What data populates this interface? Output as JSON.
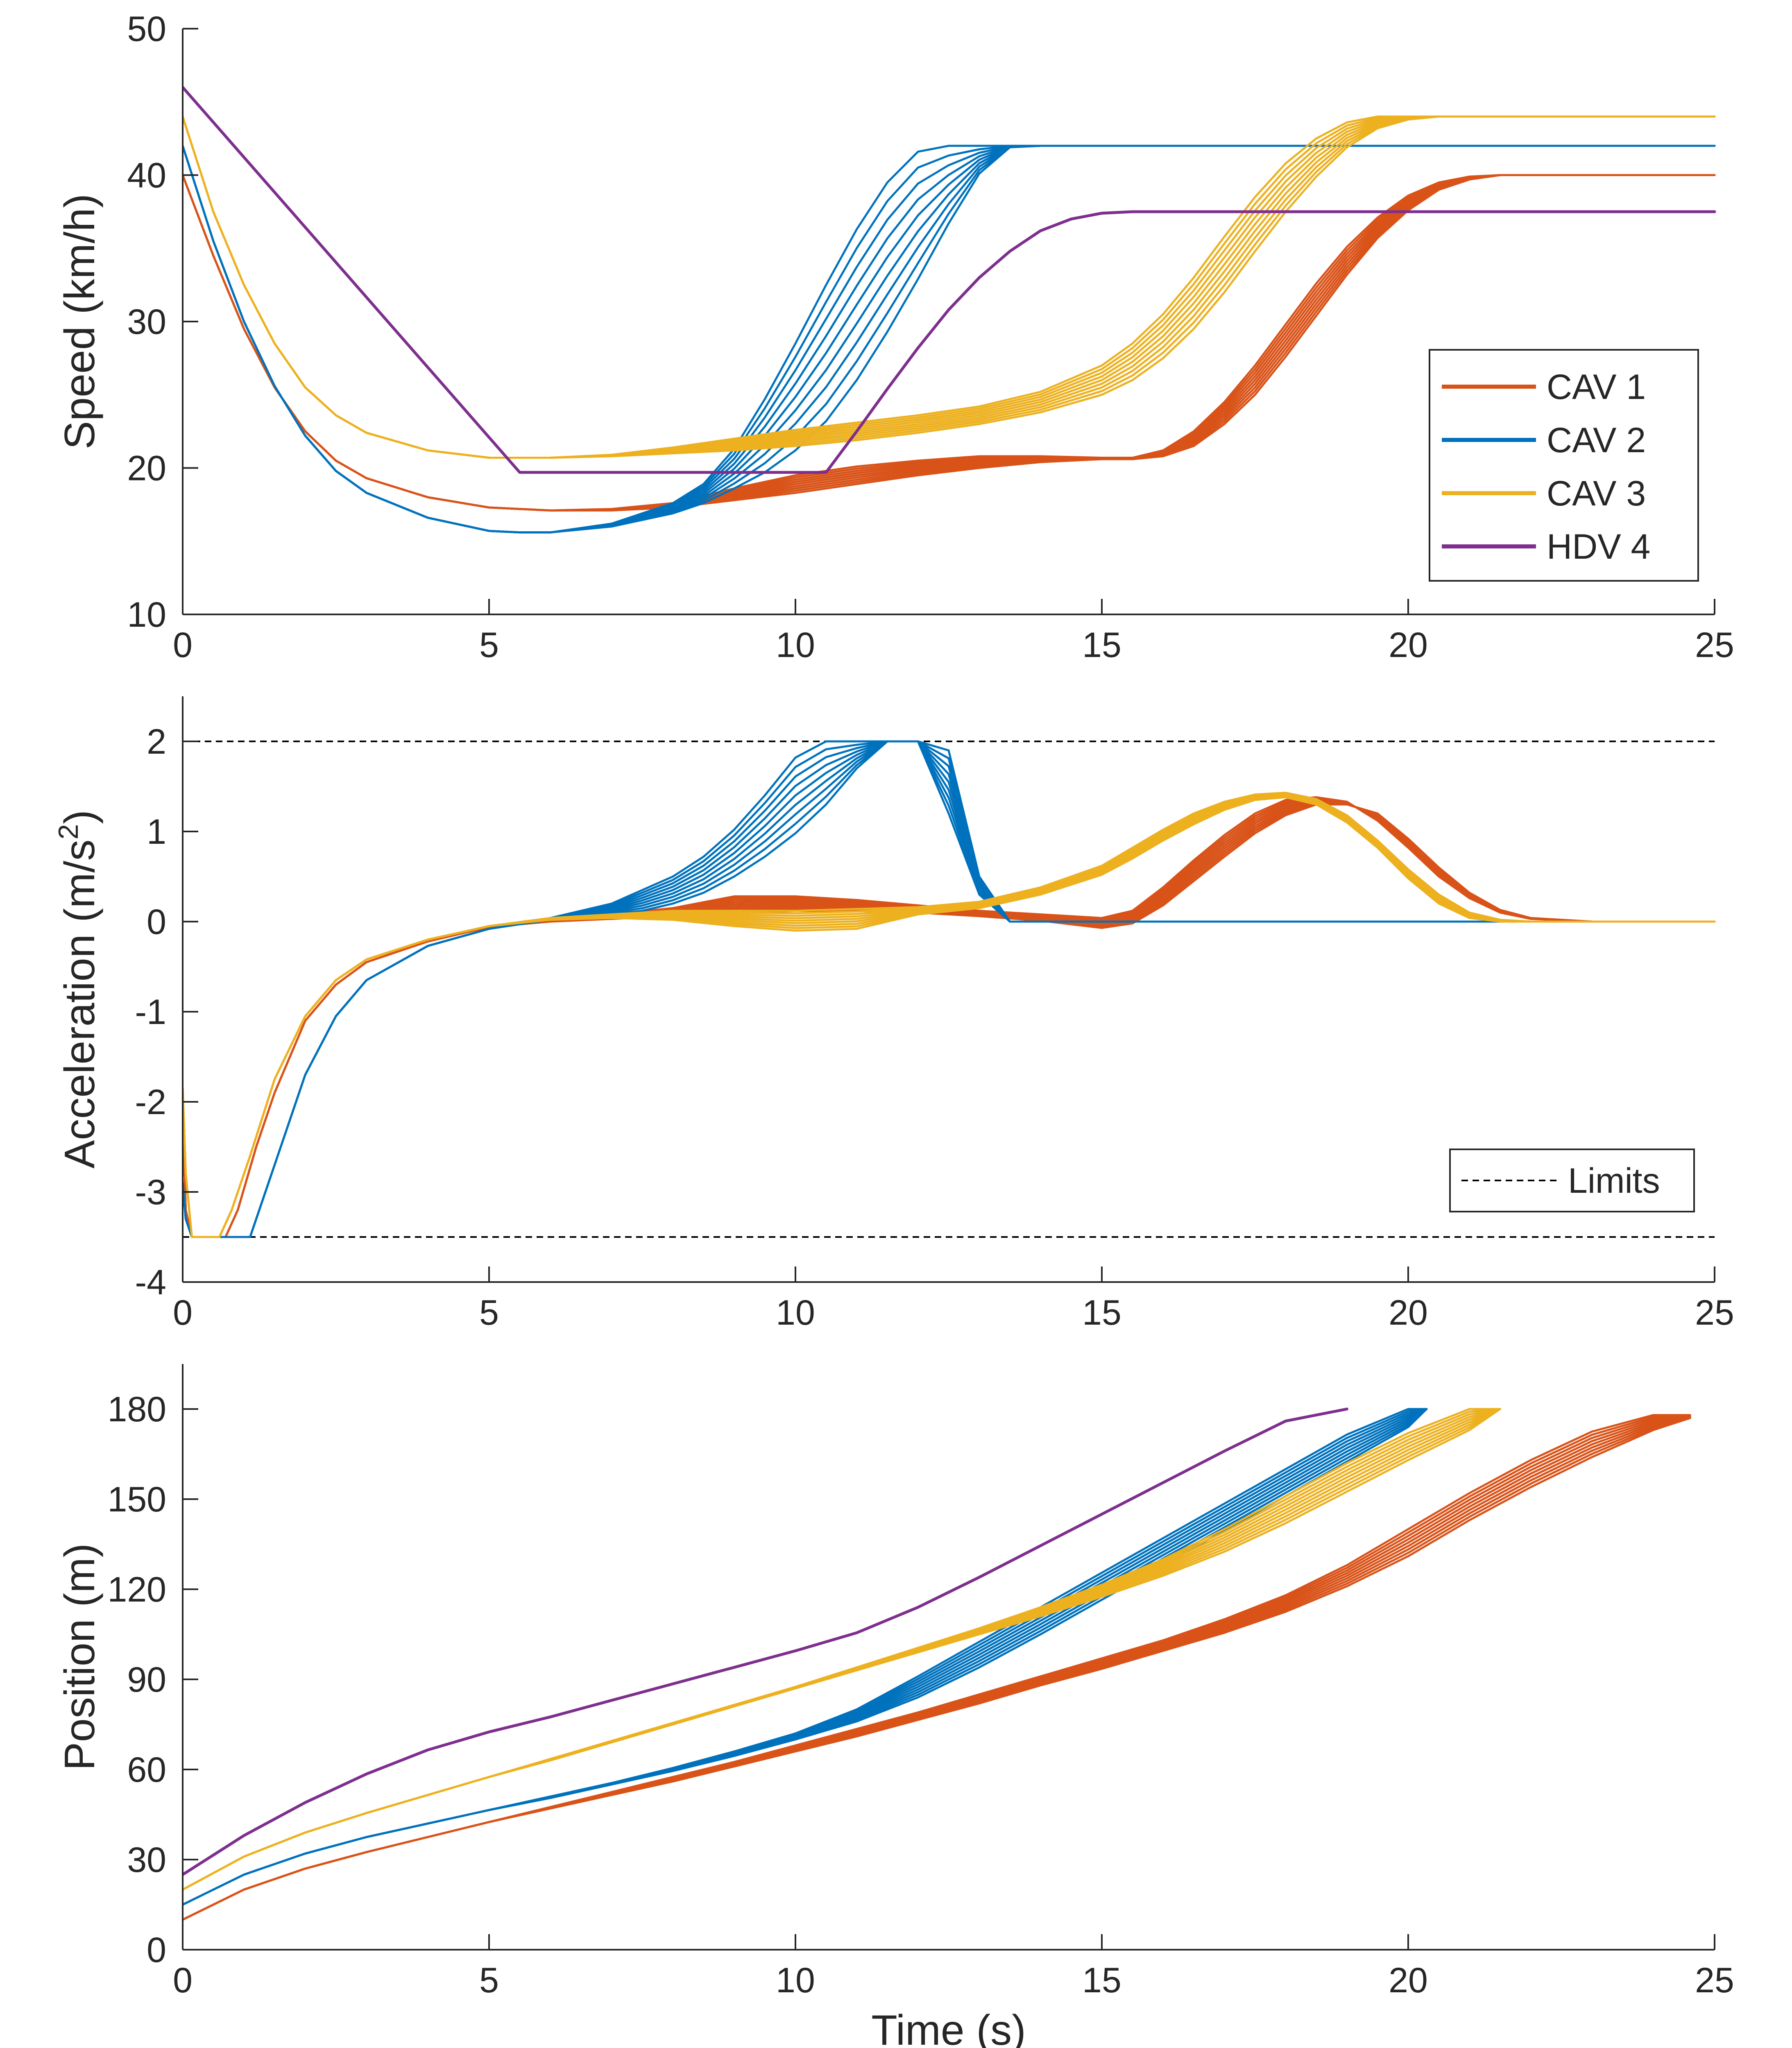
{
  "colors": {
    "CAV 1": "#D95319",
    "CAV 2": "#0072BD",
    "CAV 3": "#EDB120",
    "HDV 4": "#7E2F8E",
    "Limits": "#000000"
  },
  "chart_data": [
    {
      "id": "speed",
      "type": "line",
      "title": "",
      "xlabel": "",
      "ylabel": "Speed (km/h)",
      "xlim": [
        0,
        25
      ],
      "ylim": [
        10,
        50
      ],
      "xticks": [
        0,
        5,
        10,
        15,
        20,
        25
      ],
      "yticks": [
        10,
        20,
        30,
        40,
        50
      ],
      "xtick_labels": [
        "0",
        "5",
        "10",
        "15",
        "20",
        "25"
      ],
      "ytick_labels": [
        "10",
        "20",
        "30",
        "40",
        "50"
      ],
      "legend": {
        "position": "right",
        "entries": [
          "CAV 1",
          "CAV 2",
          "CAV 3",
          "HDV 4"
        ]
      },
      "series": [
        {
          "name": "CAV 1",
          "x": [
            0,
            0.5,
            1,
            1.5,
            2,
            2.5,
            3,
            4,
            5,
            6,
            7,
            8,
            9,
            10,
            11,
            12,
            13,
            14,
            15,
            15.5,
            16,
            16.5,
            17,
            17.5,
            18,
            18.5,
            19,
            19.5,
            20,
            20.5,
            21,
            21.5,
            22,
            23,
            24,
            25
          ],
          "y_upper": [
            40,
            34.5,
            29.5,
            25.5,
            22.5,
            20.5,
            19.3,
            18,
            17.3,
            17.1,
            17.2,
            17.6,
            18.6,
            19.5,
            20.1,
            20.5,
            20.8,
            20.8,
            20.7,
            20.7,
            21.2,
            22.5,
            24.5,
            27,
            29.8,
            32.6,
            35.1,
            37.1,
            38.6,
            39.5,
            39.9,
            40,
            40,
            40,
            40,
            40
          ],
          "y_lower": [
            40,
            34.5,
            29.5,
            25.5,
            22.5,
            20.5,
            19.3,
            18,
            17.3,
            17.1,
            17.1,
            17.3,
            17.8,
            18.3,
            18.9,
            19.5,
            20,
            20.4,
            20.6,
            20.6,
            20.8,
            21.5,
            23,
            25,
            27.6,
            30.4,
            33.2,
            35.7,
            37.6,
            39,
            39.7,
            40,
            40,
            40,
            40,
            40
          ]
        },
        {
          "name": "CAV 2",
          "x": [
            0,
            0.5,
            1,
            1.5,
            2,
            2.5,
            3,
            4,
            5,
            5.5,
            6,
            7,
            8,
            8.5,
            9,
            9.5,
            10,
            10.5,
            11,
            11.5,
            12,
            12.5,
            13,
            13.5,
            14,
            15,
            20,
            25
          ],
          "y_upper": [
            42,
            35.5,
            30,
            25.6,
            22.2,
            19.8,
            18.3,
            16.6,
            15.7,
            15.6,
            15.6,
            16.2,
            17.6,
            18.9,
            21.3,
            24.7,
            28.5,
            32.5,
            36.3,
            39.5,
            41.6,
            42,
            42,
            42,
            42,
            42,
            42,
            42
          ],
          "y_lower": [
            42,
            35.5,
            30,
            25.6,
            22.2,
            19.8,
            18.3,
            16.6,
            15.7,
            15.6,
            15.6,
            16,
            16.9,
            17.6,
            18.6,
            19.7,
            21.2,
            23.2,
            26,
            29.3,
            32.9,
            36.7,
            40.1,
            41.9,
            42,
            42,
            42,
            42
          ]
        },
        {
          "name": "CAV 3",
          "x": [
            0,
            0.5,
            1,
            1.5,
            2,
            2.5,
            3,
            4,
            5,
            6,
            7,
            8,
            9,
            10,
            11,
            12,
            13,
            14,
            15,
            15.5,
            16,
            16.5,
            17,
            17.5,
            18,
            18.5,
            19,
            19.5,
            20,
            20.5,
            21,
            22,
            25
          ],
          "y_upper": [
            44,
            37.5,
            32.5,
            28.5,
            25.5,
            23.6,
            22.4,
            21.2,
            20.7,
            20.7,
            20.9,
            21.4,
            22,
            22.6,
            23.1,
            23.6,
            24.2,
            25.2,
            27,
            28.5,
            30.5,
            33,
            35.8,
            38.5,
            40.8,
            42.5,
            43.6,
            44,
            44,
            44,
            44,
            44,
            44
          ],
          "y_lower": [
            44,
            37.5,
            32.5,
            28.5,
            25.5,
            23.6,
            22.4,
            21.2,
            20.7,
            20.7,
            20.8,
            21,
            21.2,
            21.5,
            21.9,
            22.4,
            23,
            23.8,
            25,
            26,
            27.5,
            29.5,
            32,
            34.8,
            37.5,
            39.9,
            41.9,
            43.2,
            43.8,
            44,
            44,
            44,
            44
          ]
        },
        {
          "name": "HDV 4",
          "x": [
            0,
            5.5,
            10.5,
            11,
            11.5,
            12,
            12.5,
            13,
            13.5,
            14,
            14.5,
            15,
            15.5,
            16,
            20,
            25
          ],
          "y": [
            46,
            19.7,
            19.7,
            22.5,
            25.4,
            28.2,
            30.8,
            33,
            34.8,
            36.2,
            37,
            37.4,
            37.5,
            37.5,
            37.5,
            37.5
          ]
        }
      ]
    },
    {
      "id": "acceleration",
      "type": "line",
      "title": "",
      "xlabel": "",
      "ylabel": "Acceleration (m/s",
      "ylabel_superscript": "2",
      "ylabel_suffix": ")",
      "xlim": [
        0,
        25
      ],
      "ylim": [
        -4,
        2.5
      ],
      "xticks": [
        0,
        5,
        10,
        15,
        20,
        25
      ],
      "yticks": [
        -4,
        -3,
        -2,
        -1,
        0,
        1,
        2
      ],
      "xtick_labels": [
        "0",
        "5",
        "10",
        "15",
        "20",
        "25"
      ],
      "ytick_labels": [
        "-4",
        "-3",
        "-2",
        "-1",
        "0",
        "1",
        "2"
      ],
      "limits": [
        2,
        -3.5
      ],
      "legend": {
        "position": "bottom-right",
        "entries": [
          "Limits"
        ]
      },
      "series": [
        {
          "name": "CAV 1",
          "x": [
            0,
            0.05,
            0.15,
            0.7,
            0.9,
            1.2,
            1.5,
            2,
            2.5,
            3,
            4,
            5,
            6,
            7,
            8,
            9,
            10,
            11,
            12,
            13,
            14,
            15,
            15.5,
            16,
            16.5,
            17,
            17.5,
            18,
            18.5,
            19,
            19.5,
            20,
            20.5,
            21,
            21.5,
            22,
            23,
            24,
            25
          ],
          "y_upper": [
            -2.1,
            -3.2,
            -3.5,
            -3.5,
            -3.2,
            -2.5,
            -1.9,
            -1.1,
            -0.7,
            -0.45,
            -0.22,
            -0.06,
            0.02,
            0.08,
            0.15,
            0.28,
            0.28,
            0.24,
            0.18,
            0.12,
            0.08,
            0.04,
            0.12,
            0.38,
            0.68,
            0.96,
            1.2,
            1.35,
            1.38,
            1.33,
            1.12,
            0.82,
            0.5,
            0.26,
            0.1,
            0.03,
            0,
            0,
            0
          ],
          "y_lower": [
            -2.1,
            -3.2,
            -3.5,
            -3.5,
            -3.2,
            -2.5,
            -1.9,
            -1.1,
            -0.7,
            -0.45,
            -0.22,
            -0.06,
            0,
            0.03,
            0.06,
            0.1,
            0.12,
            0.12,
            0.1,
            0.06,
            0.01,
            -0.07,
            -0.02,
            0.18,
            0.45,
            0.72,
            0.98,
            1.18,
            1.3,
            1.3,
            1.2,
            0.92,
            0.6,
            0.32,
            0.13,
            0.04,
            0,
            0,
            0
          ]
        },
        {
          "name": "CAV 2",
          "x": [
            0,
            0.05,
            0.15,
            1.1,
            1.3,
            1.6,
            2,
            2.5,
            3,
            4,
            5,
            6,
            7,
            7.5,
            8,
            8.5,
            9,
            9.5,
            10,
            10.5,
            11,
            11.5,
            12,
            12.5,
            13,
            13.5,
            14,
            25
          ],
          "y_upper": [
            -2.9,
            -3.3,
            -3.5,
            -3.5,
            -3.1,
            -2.5,
            -1.7,
            -1.05,
            -0.65,
            -0.27,
            -0.08,
            0.04,
            0.2,
            0.35,
            0.5,
            0.72,
            1.02,
            1.4,
            1.82,
            2,
            2,
            2,
            2,
            1.9,
            0.5,
            0,
            0,
            0
          ],
          "y_lower": [
            -2.9,
            -3.3,
            -3.5,
            -3.5,
            -3.1,
            -2.5,
            -1.7,
            -1.05,
            -0.65,
            -0.27,
            -0.08,
            0.02,
            0.08,
            0.12,
            0.2,
            0.32,
            0.5,
            0.72,
            0.98,
            1.3,
            1.7,
            2,
            2,
            1.2,
            0.3,
            0,
            0,
            0
          ]
        },
        {
          "name": "CAV 3",
          "x": [
            0,
            0.05,
            0.15,
            0.6,
            0.8,
            1.1,
            1.5,
            2,
            2.5,
            3,
            4,
            5,
            6,
            7,
            8,
            9,
            10,
            11,
            12,
            13,
            14,
            15,
            15.5,
            16,
            16.5,
            17,
            17.5,
            18,
            18.5,
            19,
            19.5,
            20,
            20.5,
            21,
            21.5,
            22,
            25
          ],
          "y_upper": [
            -1.85,
            -2.8,
            -3.5,
            -3.5,
            -3.2,
            -2.6,
            -1.75,
            -1.05,
            -0.65,
            -0.42,
            -0.2,
            -0.05,
            0.04,
            0.08,
            0.12,
            0.12,
            0.12,
            0.14,
            0.16,
            0.22,
            0.38,
            0.62,
            0.82,
            1.02,
            1.2,
            1.33,
            1.41,
            1.43,
            1.36,
            1.18,
            0.9,
            0.58,
            0.3,
            0.1,
            0.02,
            0,
            0
          ],
          "y_lower": [
            -1.85,
            -2.8,
            -3.5,
            -3.5,
            -3.2,
            -2.6,
            -1.75,
            -1.05,
            -0.65,
            -0.42,
            -0.2,
            -0.05,
            0.02,
            0.04,
            0.02,
            -0.05,
            -0.1,
            -0.08,
            0.08,
            0.15,
            0.3,
            0.52,
            0.7,
            0.9,
            1.08,
            1.24,
            1.35,
            1.38,
            1.3,
            1.1,
            0.82,
            0.48,
            0.2,
            0.04,
            0,
            0,
            0
          ]
        }
      ]
    },
    {
      "id": "position",
      "type": "line",
      "title": "",
      "xlabel": "Time (s)",
      "ylabel": "Position (m)",
      "xlim": [
        0,
        25
      ],
      "ylim": [
        0,
        195
      ],
      "xticks": [
        0,
        5,
        10,
        15,
        20,
        25
      ],
      "yticks": [
        0,
        30,
        60,
        90,
        120,
        150,
        180
      ],
      "xtick_labels": [
        "0",
        "5",
        "10",
        "15",
        "20",
        "25"
      ],
      "ytick_labels": [
        "0",
        "30",
        "60",
        "90",
        "120",
        "150",
        "180"
      ],
      "series": [
        {
          "name": "CAV 1",
          "x": [
            0,
            1,
            2,
            3,
            4,
            5,
            6,
            7,
            8,
            9,
            10,
            11,
            12,
            13,
            14,
            15,
            16,
            17,
            18,
            19,
            20,
            21,
            22,
            23,
            24,
            24.6
          ],
          "y_upper": [
            10,
            20,
            27,
            32.5,
            37.5,
            42.5,
            47.5,
            52.5,
            57.5,
            62.5,
            68,
            73.5,
            79,
            85,
            91,
            97,
            103,
            110,
            118,
            128,
            140,
            152,
            163,
            172.5,
            178,
            178
          ],
          "y_lower": [
            10,
            20,
            27,
            32.5,
            37.5,
            42.5,
            47,
            51.5,
            56,
            61,
            66,
            71,
            76.5,
            82,
            88,
            93.5,
            99.5,
            105.5,
            112.5,
            121,
            131,
            143,
            154,
            164,
            173,
            177
          ]
        },
        {
          "name": "CAV 2",
          "x": [
            0,
            1,
            2,
            3,
            4,
            5,
            6,
            7,
            8,
            9,
            10,
            11,
            12,
            13,
            14,
            15,
            16,
            17,
            18,
            19,
            20,
            20.3
          ],
          "y_upper": [
            15,
            25,
            32,
            37.5,
            42,
            46.5,
            51,
            55.5,
            60.5,
            66,
            72,
            80,
            91,
            102.5,
            114,
            125.5,
            137,
            148.5,
            160,
            171.5,
            180,
            180
          ],
          "y_lower": [
            15,
            25,
            32,
            37.5,
            42,
            46.5,
            50.5,
            55,
            59.5,
            64.5,
            70,
            76,
            84,
            94,
            105,
            116.5,
            128,
            139.5,
            151,
            162.5,
            174,
            180
          ]
        },
        {
          "name": "CAV 3",
          "x": [
            0,
            1,
            2,
            3,
            4,
            5,
            6,
            7,
            8,
            9,
            10,
            11,
            12,
            13,
            14,
            15,
            16,
            17,
            18,
            19,
            20,
            21,
            21.5
          ],
          "y_upper": [
            20,
            31,
            39,
            45.5,
            51.5,
            57.5,
            63.5,
            69.5,
            75.5,
            81.5,
            87.5,
            94,
            100.5,
            107,
            114,
            121.5,
            130,
            140,
            151,
            162,
            172,
            180,
            180
          ],
          "y_lower": [
            20,
            31,
            39,
            45.5,
            51.5,
            57.5,
            63,
            69,
            75,
            81,
            87,
            93,
            99,
            105,
            111,
            117.5,
            124.5,
            132.5,
            142,
            152.5,
            163,
            173,
            180
          ]
        },
        {
          "name": "HDV 4",
          "x": [
            0,
            1,
            2,
            3,
            4,
            5,
            5.5,
            6,
            7,
            8,
            9,
            10,
            11,
            12,
            13,
            14,
            15,
            16,
            17,
            18,
            19
          ],
          "y": [
            25,
            38,
            49,
            58.5,
            66.5,
            72.5,
            75,
            77.5,
            83,
            88.5,
            94,
            99.5,
            105.5,
            114,
            124,
            134.5,
            145,
            155.5,
            166,
            176,
            180
          ]
        }
      ]
    }
  ]
}
